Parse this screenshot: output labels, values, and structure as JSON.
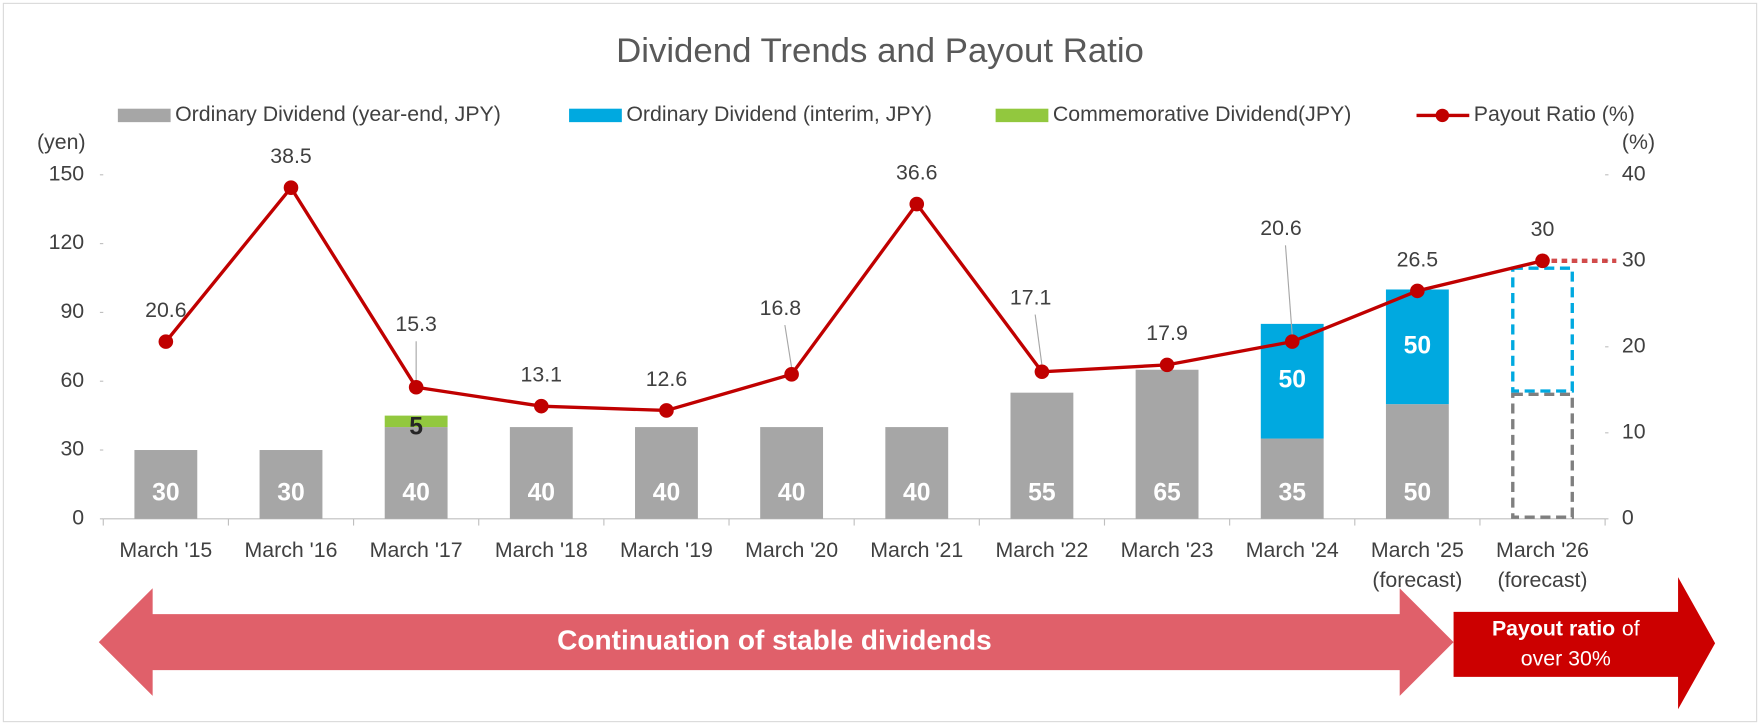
{
  "chart_data": {
    "type": "bar_line",
    "title": "Dividend Trends and Payout Ratio",
    "y_label": "(yen)",
    "y2_label": "(%)",
    "categories": [
      [
        "March '15"
      ],
      [
        "March '16"
      ],
      [
        "March '17"
      ],
      [
        "March '18"
      ],
      [
        "March '19"
      ],
      [
        "March '20"
      ],
      [
        "March '21"
      ],
      [
        "March '22"
      ],
      [
        "March '23"
      ],
      [
        "March '24"
      ],
      [
        "March '25",
        "(forecast)"
      ],
      [
        "March '26",
        "(forecast)"
      ]
    ],
    "series": [
      {
        "name": "Ordinary Dividend (year-end, JPY)",
        "type": "bar",
        "color": "#a6a6a6",
        "label_color": "#ffffff",
        "values": [
          30,
          30,
          40,
          40,
          40,
          40,
          40,
          55,
          65,
          35,
          50,
          55
        ],
        "value_labels": [
          "30",
          "30",
          "40",
          "40",
          "40",
          "40",
          "40",
          "55",
          "65",
          "35",
          "50",
          null
        ]
      },
      {
        "name": "Ordinary Dividend (interim, JPY)",
        "type": "bar",
        "color": "#00a9e0",
        "label_color": "#ffffff",
        "values": [
          null,
          null,
          null,
          null,
          null,
          null,
          null,
          null,
          null,
          50,
          50,
          55
        ],
        "value_labels": [
          null,
          null,
          null,
          null,
          null,
          null,
          null,
          null,
          null,
          "50",
          "50",
          null
        ]
      },
      {
        "name": "Commemorative Dividend(JPY)",
        "type": "bar",
        "color": "#92c83e",
        "label_color": "#262626",
        "values": [
          null,
          null,
          5,
          null,
          null,
          null,
          null,
          null,
          null,
          null,
          null,
          null
        ],
        "value_labels": [
          null,
          null,
          "5",
          null,
          null,
          null,
          null,
          null,
          null,
          null,
          null,
          null
        ]
      },
      {
        "name": "Payout Ratio (%)",
        "type": "line",
        "axis": "y2",
        "color": "#c00000",
        "values": [
          20.6,
          38.5,
          15.3,
          13.1,
          12.6,
          16.8,
          36.6,
          17.1,
          17.9,
          20.6,
          26.5,
          30
        ]
      }
    ],
    "outline_categories": [
      11
    ],
    "ylim": [
      0,
      150
    ],
    "yticks": [
      0,
      30,
      60,
      90,
      120,
      150
    ],
    "y2lim": [
      0,
      40
    ],
    "y2ticks": [
      0,
      10,
      20,
      30,
      40
    ],
    "legend": "top",
    "annotations": {
      "left_arrow": "Continuation of stable dividends",
      "right_arrow": [
        "Payout ratio",
        "of",
        "over 30%"
      ]
    }
  }
}
